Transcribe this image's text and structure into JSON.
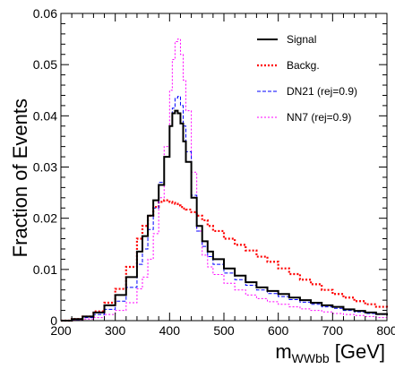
{
  "chart_data": {
    "type": "line",
    "title": "",
    "xlabel": "m",
    "xlabel_sub": "WWbb",
    "xlabel_unit": " [GeV]",
    "ylabel": "Fraction of Events",
    "xlim": [
      200,
      800
    ],
    "ylim": [
      0,
      0.06
    ],
    "x_ticks": [
      200,
      300,
      400,
      500,
      600,
      700,
      800
    ],
    "y_ticks": [
      0,
      0.01,
      0.02,
      0.03,
      0.04,
      0.05,
      0.06
    ],
    "x_tick_labels": [
      "200",
      "300",
      "400",
      "500",
      "600",
      "700",
      "800"
    ],
    "y_tick_labels": [
      "0",
      "0.01",
      "0.02",
      "0.03",
      "0.04",
      "0.05",
      "0.06"
    ],
    "grid": false,
    "legend_position": "top-right",
    "x": [
      200,
      220,
      240,
      260,
      280,
      300,
      320,
      340,
      350,
      360,
      370,
      380,
      390,
      400,
      405,
      410,
      415,
      420,
      425,
      430,
      440,
      450,
      460,
      470,
      480,
      500,
      520,
      540,
      560,
      580,
      600,
      620,
      640,
      660,
      680,
      700,
      720,
      740,
      760,
      780,
      800
    ],
    "series": [
      {
        "name": "Signal",
        "color": "#000000",
        "style": "solid",
        "values": [
          0.0,
          0.0003,
          0.0008,
          0.0016,
          0.003,
          0.005,
          0.0085,
          0.0135,
          0.0165,
          0.0205,
          0.0235,
          0.0265,
          0.032,
          0.038,
          0.0405,
          0.041,
          0.0405,
          0.0385,
          0.035,
          0.031,
          0.024,
          0.0185,
          0.0155,
          0.0135,
          0.012,
          0.0102,
          0.0088,
          0.0075,
          0.0065,
          0.0058,
          0.0052,
          0.0045,
          0.004,
          0.0035,
          0.003,
          0.0027,
          0.0022,
          0.0019,
          0.0016,
          0.0013,
          0.001
        ]
      },
      {
        "name": "Backg.",
        "color": "#ff0000",
        "style": "dotted",
        "values": [
          0.0,
          0.0003,
          0.0008,
          0.0018,
          0.0035,
          0.0062,
          0.0105,
          0.016,
          0.0185,
          0.0205,
          0.0222,
          0.0232,
          0.0235,
          0.0232,
          0.023,
          0.0228,
          0.0225,
          0.0222,
          0.0219,
          0.0217,
          0.0212,
          0.0205,
          0.0196,
          0.0185,
          0.0175,
          0.016,
          0.0148,
          0.0137,
          0.0125,
          0.0115,
          0.0102,
          0.0091,
          0.008,
          0.0071,
          0.006,
          0.0052,
          0.0045,
          0.0038,
          0.0032,
          0.0027,
          0.0023
        ]
      },
      {
        "name": "DN21 (rej=0.9)",
        "color": "#0000ff",
        "style": "dashed",
        "values": [
          0.0,
          0.0002,
          0.0006,
          0.0012,
          0.0022,
          0.0038,
          0.0065,
          0.011,
          0.014,
          0.0178,
          0.022,
          0.027,
          0.032,
          0.038,
          0.0415,
          0.0435,
          0.0438,
          0.042,
          0.038,
          0.033,
          0.0245,
          0.0175,
          0.0145,
          0.0125,
          0.011,
          0.0093,
          0.008,
          0.0069,
          0.006,
          0.0053,
          0.0047,
          0.0041,
          0.0036,
          0.0032,
          0.0027,
          0.0024,
          0.002,
          0.0017,
          0.0014,
          0.0012,
          0.0009
        ]
      },
      {
        "name": "NN7 (rej=0.9)",
        "color": "#ff00ff",
        "style": "dotted",
        "values": [
          0.0,
          0.0001,
          0.0003,
          0.0006,
          0.0012,
          0.002,
          0.0035,
          0.0062,
          0.0085,
          0.012,
          0.017,
          0.024,
          0.034,
          0.045,
          0.051,
          0.0545,
          0.055,
          0.052,
          0.047,
          0.041,
          0.029,
          0.0175,
          0.0128,
          0.0105,
          0.009,
          0.0073,
          0.006,
          0.005,
          0.0043,
          0.0037,
          0.0032,
          0.0027,
          0.0023,
          0.002,
          0.0017,
          0.0014,
          0.0012,
          0.001,
          0.0008,
          0.0006,
          0.0005
        ]
      }
    ]
  }
}
